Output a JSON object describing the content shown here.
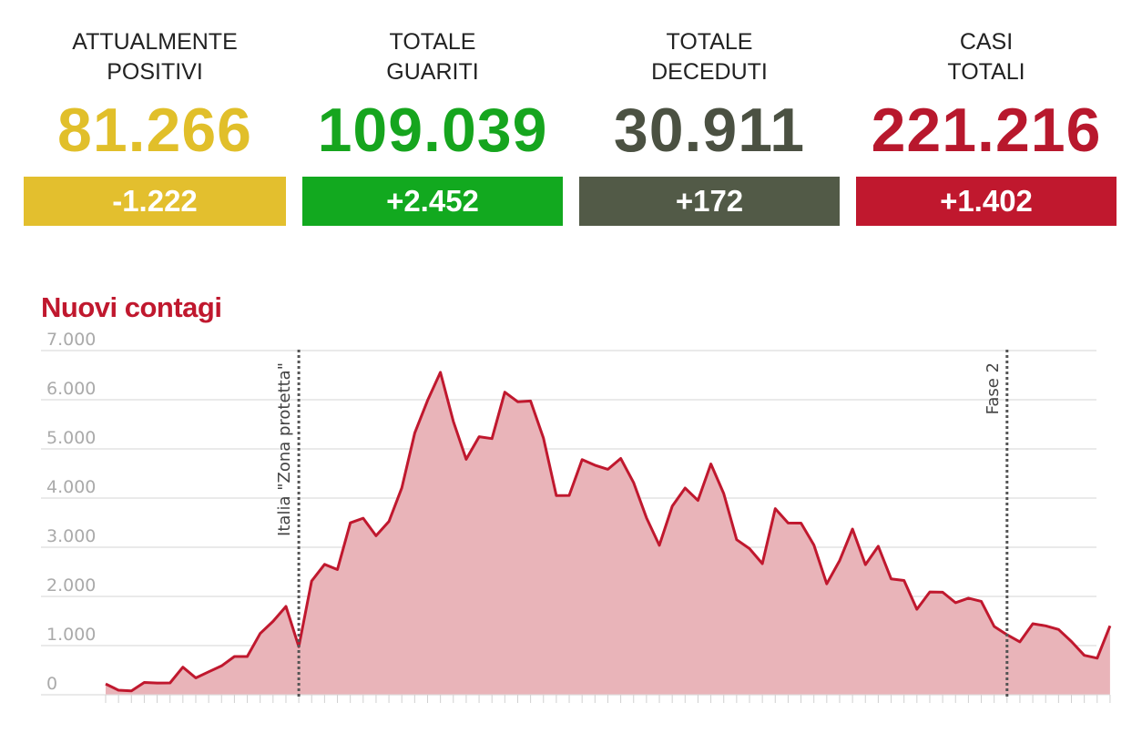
{
  "stats": [
    {
      "label_line1": "ATTUALMENTE",
      "label_line2": "POSITIVI",
      "value": "81.266",
      "delta": "-1.222",
      "value_color": "#e1bf2a",
      "box_color": "#e3bf2e"
    },
    {
      "label_line1": "TOTALE",
      "label_line2": "GUARITI",
      "value": "109.039",
      "delta": "+2.452",
      "value_color": "#16a51e",
      "box_color": "#12a91f"
    },
    {
      "label_line1": "TOTALE",
      "label_line2": "DECEDUTI",
      "value": "30.911",
      "delta": "+172",
      "value_color": "#4b5142",
      "box_color": "#525a47"
    },
    {
      "label_line1": "CASI",
      "label_line2": "TOTALI",
      "value": "221.216",
      "delta": "+1.402",
      "value_color": "#b8182d",
      "box_color": "#c0182e"
    }
  ],
  "chart_data": {
    "type": "area",
    "title": "Nuovi contagi",
    "y_ticks": [
      "0",
      "1.000",
      "2.000",
      "3.000",
      "4.000",
      "5.000",
      "6.000",
      "7.000"
    ],
    "ylim": [
      0,
      7000
    ],
    "grid": true,
    "line_color": "#c0182e",
    "fill_color": "#e9b4b9",
    "values": [
      221,
      93,
      78,
      250,
      238,
      240,
      561,
      342,
      466,
      587,
      778,
      778,
      1247,
      1492,
      1797,
      977,
      2313,
      2651,
      2547,
      3497,
      3590,
      3233,
      3526,
      4207,
      5322,
      5986,
      6557,
      5560,
      4789,
      5249,
      5210,
      6153,
      5959,
      5974,
      5217,
      4050,
      4053,
      4782,
      4668,
      4585,
      4805,
      4316,
      3599,
      3039,
      3836,
      4204,
      3951,
      4694,
      4092,
      3153,
      2972,
      2667,
      3786,
      3493,
      3491,
      3047,
      2256,
      2729,
      3370,
      2646,
      3021,
      2357,
      2324,
      1739,
      2091,
      2086,
      1872,
      1965,
      1900,
      1389,
      1221,
      1075,
      1444,
      1401,
      1327,
      1083,
      802,
      744,
      1402
    ],
    "annotations": [
      {
        "label": "Italia \"Zona protetta\"",
        "index": 15
      },
      {
        "label": "Fase 2",
        "index": 70
      }
    ]
  }
}
